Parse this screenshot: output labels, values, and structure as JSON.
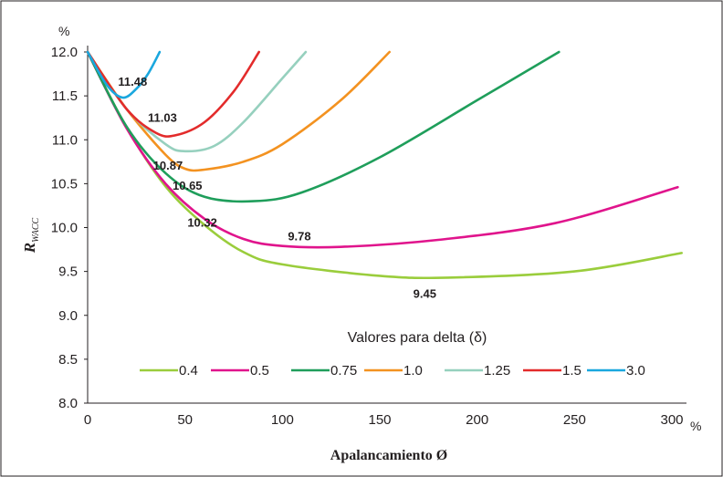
{
  "chart_data": {
    "type": "line",
    "y_unit": "%",
    "x_unit": "%",
    "ylabel_main": "R",
    "ylabel_sub": "WACC",
    "xlabel": "Apalancamiento Ø",
    "xlim": [
      0,
      310
    ],
    "ylim": [
      8.0,
      12.0
    ],
    "x_ticks": [
      "0",
      "50",
      "100",
      "150",
      "200",
      "250",
      "300"
    ],
    "y_ticks": [
      "8.0",
      "8.5",
      "9.0",
      "9.5",
      "10.0",
      "10.5",
      "11.0",
      "11.5",
      "12.0"
    ],
    "legend_title": "Valores para delta (δ)",
    "legend_position": "lower-center",
    "grid": false,
    "series": [
      {
        "name": "0.4",
        "color": "#9ACD3C",
        "min_label": "9.45",
        "x": [
          0,
          20,
          40,
          60,
          80,
          100,
          150,
          185,
          250,
          305
        ],
        "y": [
          12.0,
          11.14,
          10.47,
          10.03,
          9.72,
          9.58,
          9.45,
          9.43,
          9.5,
          9.71
        ]
      },
      {
        "name": "0.5",
        "color": "#E0148C",
        "min_label": "9.78",
        "x": [
          0,
          20,
          40,
          60,
          80,
          100,
          130,
          180,
          240,
          303
        ],
        "y": [
          12.0,
          11.13,
          10.5,
          10.1,
          9.87,
          9.79,
          9.78,
          9.86,
          10.05,
          10.46
        ]
      },
      {
        "name": "0.75",
        "color": "#1F9E5B",
        "min_label": "10.32",
        "x": [
          0,
          20,
          40,
          60,
          85,
          110,
          150,
          200,
          242
        ],
        "y": [
          12.0,
          11.15,
          10.62,
          10.35,
          10.3,
          10.4,
          10.8,
          11.45,
          12.0
        ]
      },
      {
        "name": "1.0",
        "color": "#F39220",
        "min_label": "10.65",
        "x": [
          0,
          20,
          40,
          50,
          60,
          80,
          100,
          130,
          155
        ],
        "y": [
          12.0,
          11.35,
          10.83,
          10.67,
          10.66,
          10.75,
          10.95,
          11.45,
          12.0
        ]
      },
      {
        "name": "1.25",
        "color": "#96D0BE",
        "min_label": "10.87",
        "x": [
          0,
          20,
          40,
          50,
          65,
          80,
          100,
          112
        ],
        "y": [
          12.0,
          11.35,
          10.95,
          10.87,
          10.93,
          11.2,
          11.7,
          12.0
        ]
      },
      {
        "name": "1.5",
        "color": "#E32B2B",
        "min_label": "11.03",
        "x": [
          0,
          20,
          35,
          45,
          60,
          75,
          88
        ],
        "y": [
          12.0,
          11.35,
          11.08,
          11.05,
          11.2,
          11.55,
          12.0
        ]
      },
      {
        "name": "3.0",
        "color": "#1AA7DE",
        "min_label": "11.48",
        "x": [
          0,
          10,
          18,
          25,
          31,
          37
        ],
        "y": [
          12.0,
          11.62,
          11.48,
          11.58,
          11.75,
          12.0
        ]
      }
    ]
  }
}
